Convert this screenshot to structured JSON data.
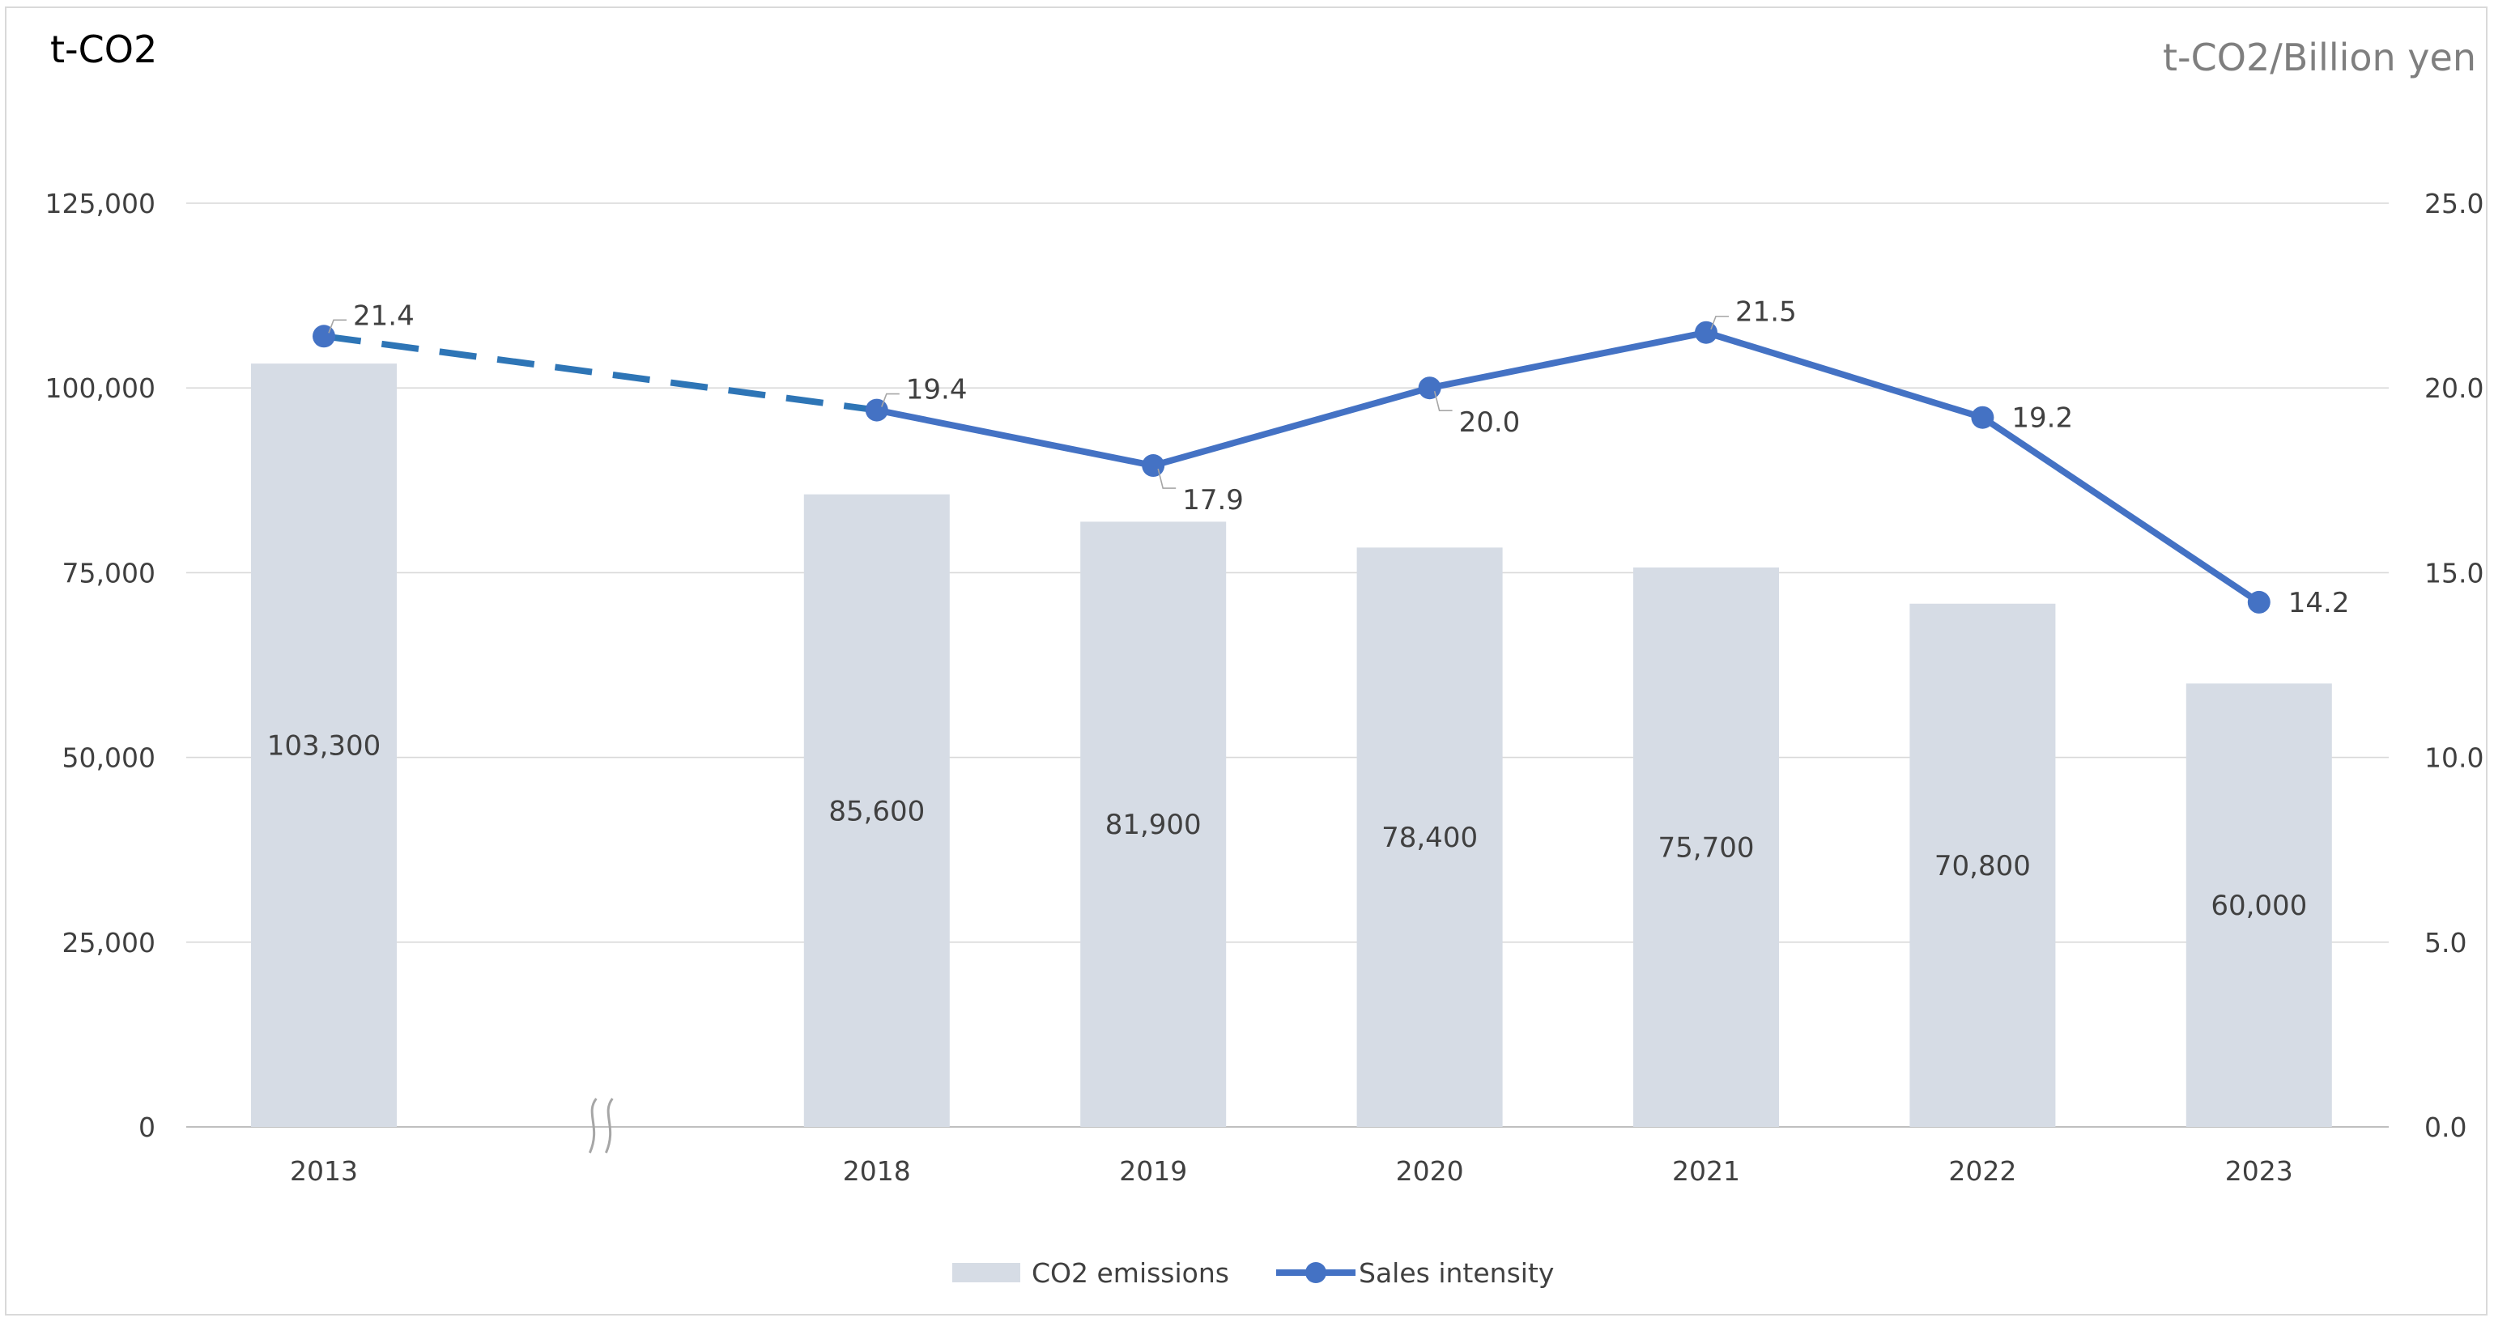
{
  "chart_data": {
    "type": "bar+line",
    "left_axis_unit": "t-CO2",
    "right_axis_unit": "t-CO2/Billion yen",
    "categories": [
      "2013",
      "",
      "2018",
      "2019",
      "2020",
      "2021",
      "2022",
      "2023"
    ],
    "left_ylim": [
      0,
      125000
    ],
    "left_ticks": [
      "0",
      "25,000",
      "50,000",
      "75,000",
      "100,000",
      "125,000"
    ],
    "right_ylim": [
      0,
      25
    ],
    "right_ticks": [
      "0.0",
      "5.0",
      "10.0",
      "15.0",
      "20.0",
      "25.0"
    ],
    "grid": true,
    "axis_break_between": [
      "2013",
      "2018"
    ],
    "series": [
      {
        "name": "CO2 emissions",
        "kind": "bar",
        "axis": "left",
        "color": "#d6dce5",
        "values": [
          103300,
          null,
          85600,
          81900,
          78400,
          75700,
          70800,
          60000
        ],
        "labels": [
          "103,300",
          "",
          "85,600",
          "81,900",
          "78,400",
          "75,700",
          "70,800",
          "60,000"
        ]
      },
      {
        "name": "Sales intensity",
        "kind": "line",
        "axis": "right",
        "color": "#4472c4",
        "values": [
          21.4,
          null,
          19.4,
          17.9,
          20.0,
          21.5,
          19.2,
          14.2
        ],
        "labels": [
          "21.4",
          "",
          "19.4",
          "17.9",
          "20.0",
          "21.5",
          "19.2",
          "14.2"
        ],
        "dashed_segment": [
          "2013",
          "2018"
        ],
        "dashed_color": "#2e75b6"
      }
    ],
    "legend": {
      "placement": "bottom",
      "items": [
        {
          "label": "CO2 emissions",
          "swatch": "bar",
          "color": "#d6dce5"
        },
        {
          "label": "Sales intensity",
          "swatch": "line",
          "color": "#4472c4"
        }
      ]
    }
  }
}
